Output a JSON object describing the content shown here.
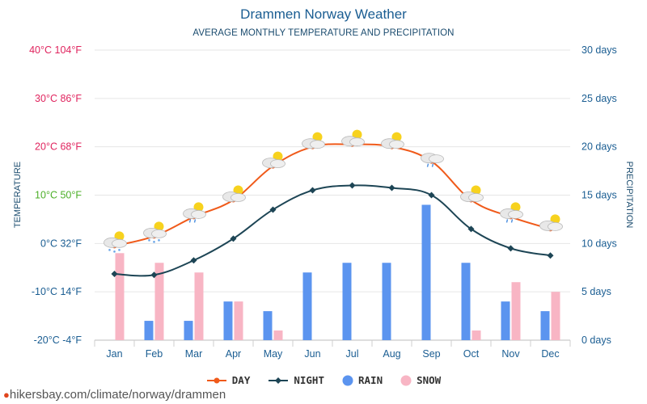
{
  "chart_data": {
    "type": "line+bar",
    "title": "Drammen Norway Weather",
    "subtitle": "AVERAGE MONTHLY TEMPERATURE AND PRECIPITATION",
    "categories": [
      "Jan",
      "Feb",
      "Mar",
      "Apr",
      "May",
      "Jun",
      "Jul",
      "Aug",
      "Sep",
      "Oct",
      "Nov",
      "Dec"
    ],
    "series": [
      {
        "name": "DAY",
        "kind": "line",
        "color": "#f05a1a",
        "axis": "temperature",
        "values": [
          -0.5,
          1.5,
          5.5,
          9,
          16,
          20,
          20.5,
          20,
          17,
          9,
          5.5,
          3
        ]
      },
      {
        "name": "NIGHT",
        "kind": "line",
        "color": "#1d4555",
        "axis": "temperature",
        "values": [
          -6.3,
          -6.5,
          -3.5,
          1,
          7,
          11,
          12,
          11.5,
          10,
          3,
          -1,
          -2.5
        ]
      },
      {
        "name": "RAIN",
        "kind": "bar",
        "color": "#5b94ef",
        "axis": "precipitation",
        "values": [
          0,
          2,
          2,
          4,
          3,
          7,
          8,
          8,
          14,
          8,
          4,
          3
        ]
      },
      {
        "name": "SNOW",
        "kind": "bar",
        "color": "#f8b5c4",
        "axis": "precipitation",
        "values": [
          9,
          8,
          7,
          4,
          1,
          0,
          0,
          0,
          0,
          1,
          6,
          5
        ]
      }
    ],
    "weather_icons": [
      "snow",
      "snow",
      "rain",
      "partly-cloudy",
      "partly-cloudy",
      "partly-cloudy",
      "partly-cloudy",
      "partly-cloudy",
      "rain",
      "partly-cloudy",
      "rain",
      "partly-cloudy"
    ],
    "y_left": {
      "label": "TEMPERATURE",
      "range": [
        -20,
        40
      ],
      "ticks": [
        {
          "value": 40,
          "label": "40°C 104°F",
          "color": "#e0245e"
        },
        {
          "value": 30,
          "label": "30°C 86°F",
          "color": "#e0245e"
        },
        {
          "value": 20,
          "label": "20°C 68°F",
          "color": "#e0245e"
        },
        {
          "value": 10,
          "label": "10°C 50°F",
          "color": "#4caf28"
        },
        {
          "value": 0,
          "label": "0°C 32°F",
          "color": "#1a5d92"
        },
        {
          "value": -10,
          "label": "-10°C 14°F",
          "color": "#1a5d92"
        },
        {
          "value": -20,
          "label": "-20°C -4°F",
          "color": "#1a5d92"
        }
      ]
    },
    "y_right": {
      "label": "PRECIPITATION",
      "range": [
        0,
        30
      ],
      "ticks": [
        {
          "value": 30,
          "label": "30 days"
        },
        {
          "value": 25,
          "label": "25 days"
        },
        {
          "value": 20,
          "label": "20 days"
        },
        {
          "value": 15,
          "label": "15 days"
        },
        {
          "value": 10,
          "label": "10 days"
        },
        {
          "value": 5,
          "label": "5 days"
        },
        {
          "value": 0,
          "label": "0 days"
        }
      ]
    },
    "legend_position": "bottom-center"
  },
  "footer": {
    "url": "hikersbay.com/climate/norway/drammen"
  }
}
